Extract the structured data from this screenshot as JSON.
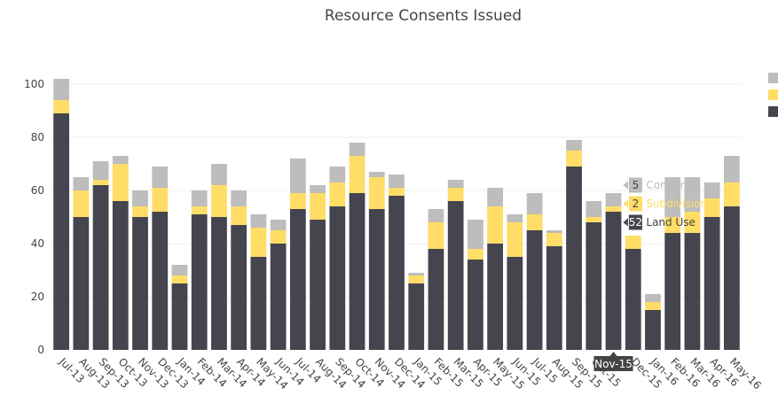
{
  "chart_data": {
    "type": "bar",
    "stacked": true,
    "title": "Resource Consents Issued",
    "xlabel": "",
    "ylabel": "",
    "ylim": [
      0,
      100
    ],
    "yticks": [
      0,
      20,
      40,
      60,
      80,
      100
    ],
    "grid": true,
    "legend_position": "right",
    "categories": [
      "Jul-13",
      "Aug-13",
      "Sep-13",
      "Oct-13",
      "Nov-13",
      "Dec-13",
      "Jan-14",
      "Feb-14",
      "Mar-14",
      "Apr-14",
      "May-14",
      "Jun-14",
      "Jul-14",
      "Aug-14",
      "Sep-14",
      "Oct-14",
      "Nov-14",
      "Dec-14",
      "Jan-15",
      "Feb-15",
      "Mar-15",
      "Apr-15",
      "May-15",
      "Jun-15",
      "Jul-15",
      "Aug-15",
      "Sep-15",
      "Oct-15",
      "Nov-15",
      "Dec-15",
      "Jan-16",
      "Feb-16",
      "Mar-16",
      "Apr-16",
      "May-16"
    ],
    "series": [
      {
        "name": "Land Use",
        "color": "#45454f",
        "values": [
          89,
          50,
          62,
          56,
          50,
          52,
          25,
          51,
          50,
          47,
          35,
          40,
          53,
          49,
          54,
          59,
          53,
          58,
          25,
          38,
          56,
          34,
          40,
          35,
          45,
          39,
          69,
          48,
          52,
          38,
          15,
          44,
          44,
          50,
          54
        ]
      },
      {
        "name": "Subdivision",
        "color": "#ffdd66",
        "values": [
          5,
          10,
          2,
          14,
          4,
          9,
          3,
          3,
          12,
          7,
          11,
          5,
          6,
          10,
          9,
          14,
          12,
          3,
          3,
          10,
          5,
          4,
          14,
          13,
          6,
          5,
          6,
          2,
          2,
          5,
          3,
          6,
          8,
          7,
          9
        ]
      },
      {
        "name": "Combined",
        "color": "#bdbdbd",
        "values": [
          8,
          5,
          7,
          3,
          6,
          8,
          4,
          6,
          8,
          6,
          5,
          4,
          13,
          3,
          6,
          5,
          2,
          5,
          1,
          5,
          3,
          11,
          7,
          3,
          8,
          1,
          4,
          6,
          5,
          0,
          3,
          15,
          13,
          6,
          10
        ]
      }
    ],
    "tooltip": {
      "category": "Nov-15",
      "items": [
        {
          "series": "Combined",
          "value": 5
        },
        {
          "series": "Subdivision",
          "value": 2
        },
        {
          "series": "Land Use",
          "value": 52
        }
      ]
    }
  }
}
